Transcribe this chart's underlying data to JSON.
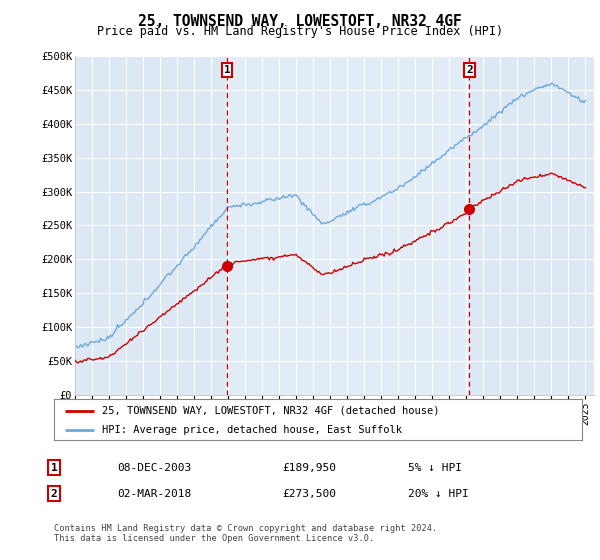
{
  "title": "25, TOWNSEND WAY, LOWESTOFT, NR32 4GF",
  "subtitle": "Price paid vs. HM Land Registry's House Price Index (HPI)",
  "background_color": "#dce9f5",
  "plot_bg_color": "#dce9f5",
  "ylabel_ticks": [
    "£0",
    "£50K",
    "£100K",
    "£150K",
    "£200K",
    "£250K",
    "£300K",
    "£350K",
    "£400K",
    "£450K",
    "£500K"
  ],
  "ytick_values": [
    0,
    50000,
    100000,
    150000,
    200000,
    250000,
    300000,
    350000,
    400000,
    450000,
    500000
  ],
  "ylim": [
    0,
    500000
  ],
  "xlim_start": 1995.0,
  "xlim_end": 2025.5,
  "marker1_x": 2003.93,
  "marker1_y": 189950,
  "marker1_date": "08-DEC-2003",
  "marker1_price": "£189,950",
  "marker1_hpi": "5% ↓ HPI",
  "marker2_x": 2018.17,
  "marker2_y": 273500,
  "marker2_date": "02-MAR-2018",
  "marker2_price": "£273,500",
  "marker2_hpi": "20% ↓ HPI",
  "hpi_line_color": "#6fa8dc",
  "price_line_color": "#cc0000",
  "legend_label1": "25, TOWNSEND WAY, LOWESTOFT, NR32 4GF (detached house)",
  "legend_label2": "HPI: Average price, detached house, East Suffolk",
  "footer": "Contains HM Land Registry data © Crown copyright and database right 2024.\nThis data is licensed under the Open Government Licence v3.0.",
  "xtick_years": [
    1995,
    1996,
    1997,
    1998,
    1999,
    2000,
    2001,
    2002,
    2003,
    2004,
    2005,
    2006,
    2007,
    2008,
    2009,
    2010,
    2011,
    2012,
    2013,
    2014,
    2015,
    2016,
    2017,
    2018,
    2019,
    2020,
    2021,
    2022,
    2023,
    2024,
    2025
  ]
}
